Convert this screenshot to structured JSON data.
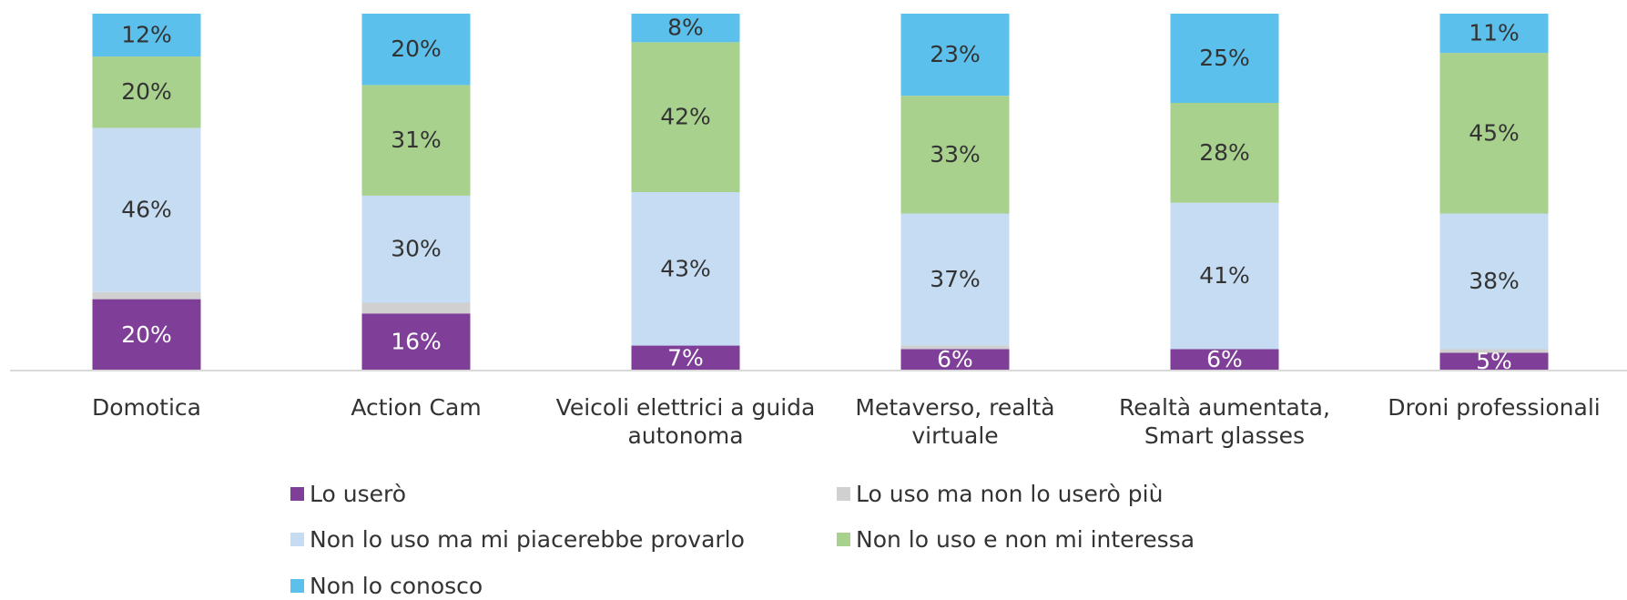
{
  "chart_data": {
    "type": "stacked_bar",
    "categories": [
      "Domotica",
      "Action Cam",
      "Veicoli elettrici a guida autonoma",
      "Metaverso, realtà virtuale",
      "Realtà aumentata, Smart glasses",
      "Droni professionali"
    ],
    "ylim": [
      0,
      100
    ],
    "series": [
      {
        "name": "Lo userò",
        "color": "#7f3f98",
        "values": [
          20,
          16,
          7,
          6,
          6,
          5
        ],
        "value_labels": [
          "20%",
          "16%",
          "7%",
          "6%",
          "6%",
          "5%"
        ]
      },
      {
        "name": "Lo uso ma non lo userò più",
        "color": "#d0d0d0",
        "values": [
          2,
          3,
          0,
          1,
          0,
          1
        ]
      },
      {
        "name": "Non lo uso ma mi piacerebbe provarlo",
        "color": "#c5dcf2",
        "values": [
          46,
          30,
          43,
          37,
          41,
          38
        ],
        "value_labels": [
          "46%",
          "30%",
          "43%",
          "37%",
          "41%",
          "38%"
        ]
      },
      {
        "name": "Non lo uso e non mi interessa",
        "color": "#a9d18e",
        "values": [
          20,
          31,
          42,
          33,
          28,
          45
        ],
        "value_labels": [
          "20%",
          "31%",
          "42%",
          "33%",
          "28%",
          "45%"
        ]
      },
      {
        "name": "Non lo conosco",
        "color": "#5bc0eb",
        "values": [
          12,
          20,
          8,
          23,
          25,
          11
        ],
        "value_labels": [
          "12%",
          "20%",
          "8%",
          "23%",
          "25%",
          "11%"
        ]
      }
    ]
  }
}
